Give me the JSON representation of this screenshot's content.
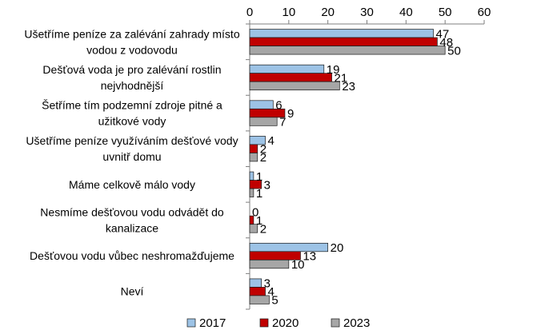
{
  "chart_data": {
    "type": "bar",
    "orientation": "horizontal",
    "categories": [
      [
        "Ušetříme peníze za zalévání zahrady místo",
        "vodou z vodovodu"
      ],
      [
        "Dešťová voda je pro zalévání rostlin",
        "nejvhodnější"
      ],
      [
        "Šetříme tím podzemní zdroje pitné a",
        "užitkové vody"
      ],
      [
        "Ušetříme peníze využíváním dešťové vody",
        "uvnitř domu"
      ],
      [
        "Máme celkově málo vody"
      ],
      [
        "Nesmíme dešťovou vodu odvádět do",
        "kanalizace"
      ],
      [
        "Dešťovou vodu vůbec neshromažďujeme"
      ],
      [
        "Neví"
      ]
    ],
    "series": [
      {
        "name": "2017",
        "color": "#9dc3e6",
        "values": [
          47,
          19,
          6,
          4,
          1,
          0,
          20,
          3
        ]
      },
      {
        "name": "2020",
        "color": "#c00000",
        "values": [
          48,
          21,
          9,
          2,
          3,
          1,
          13,
          4
        ]
      },
      {
        "name": "2023",
        "color": "#a6a6a6",
        "values": [
          50,
          23,
          7,
          2,
          1,
          2,
          10,
          5
        ]
      }
    ],
    "xlim": [
      0,
      60
    ],
    "xticks": [
      0,
      10,
      20,
      30,
      40,
      50,
      60
    ],
    "axis_position": "top",
    "grid": false,
    "legend_position": "bottom"
  }
}
